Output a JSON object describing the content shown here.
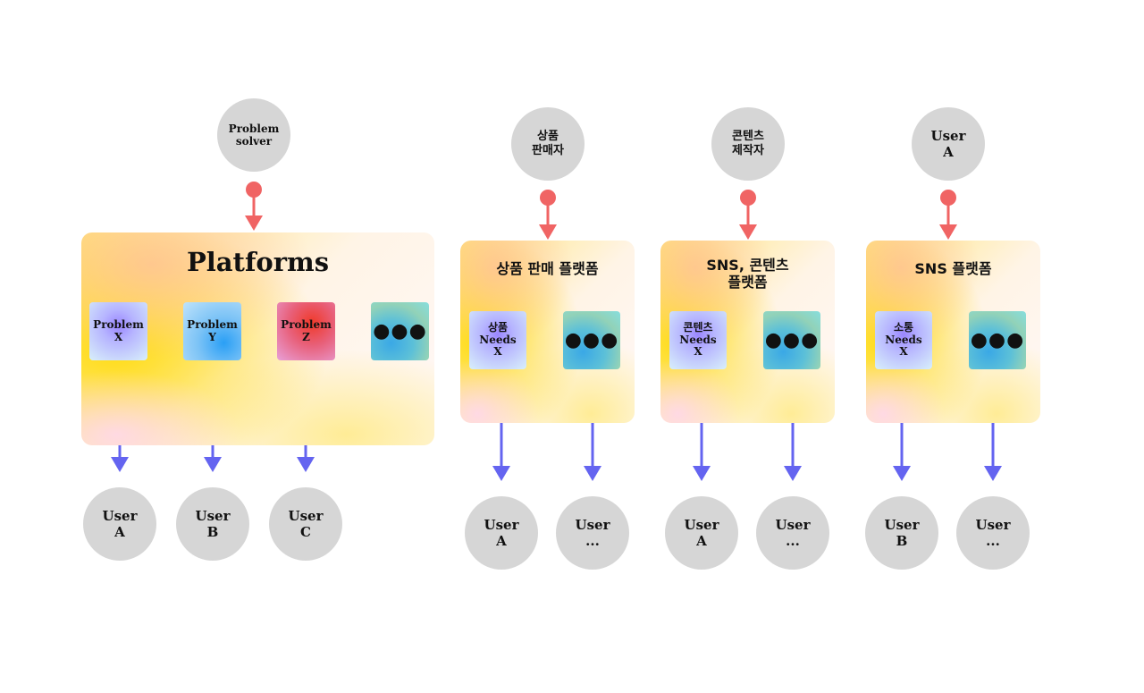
{
  "colors": {
    "input_arrow": "#f06464",
    "output_arrow": "#6464f0",
    "node": "#d6d6d6"
  },
  "groups": [
    {
      "source": "Problem\nsolver",
      "title": "Platforms",
      "cards": [
        {
          "label": "Problem\nX",
          "style": "purple"
        },
        {
          "label": "Problem\nY",
          "style": "blue"
        },
        {
          "label": "Problem\nZ",
          "style": "red"
        },
        {
          "label": "●●●",
          "style": "teal"
        }
      ],
      "users": [
        "User\nA",
        "User\nB",
        "User\nC"
      ]
    },
    {
      "source": "상품\n판매자",
      "title": "상품 판매 플랫폼",
      "cards": [
        {
          "label": "상품\nNeeds\nX",
          "style": "purple"
        },
        {
          "label": "●●●",
          "style": "teal"
        }
      ],
      "users": [
        "User\nA",
        "User\n..."
      ]
    },
    {
      "source": "콘텐츠\n제작자",
      "title": "SNS, 콘텐츠\n플랫폼",
      "cards": [
        {
          "label": "콘텐츠\nNeeds\nX",
          "style": "purple"
        },
        {
          "label": "●●●",
          "style": "teal"
        }
      ],
      "users": [
        "User\nA",
        "User\n..."
      ]
    },
    {
      "source": "User\nA",
      "title": "SNS 플랫폼",
      "cards": [
        {
          "label": "소통\nNeeds\nX",
          "style": "purple"
        },
        {
          "label": "●●●",
          "style": "teal"
        }
      ],
      "users": [
        "User\nB",
        "User\n..."
      ]
    }
  ]
}
